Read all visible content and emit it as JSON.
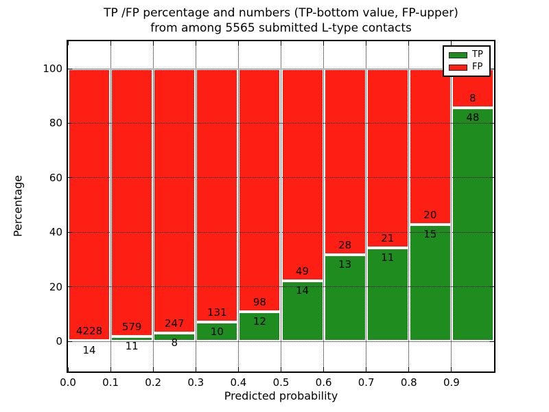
{
  "title": {
    "line1": "TP /FP percentage and numbers (TP-bottom value, FP-upper)",
    "line2": "from among 5565 submitted L-type contacts"
  },
  "axes": {
    "xlabel": "Predicted probability",
    "ylabel": "Percentage",
    "xtick_labels": [
      "0.0",
      "0.1",
      "0.2",
      "0.3",
      "0.4",
      "0.5",
      "0.6",
      "0.7",
      "0.8",
      "0.9"
    ],
    "xtick_values": [
      0.0,
      0.1,
      0.2,
      0.3,
      0.4,
      0.5,
      0.6,
      0.7,
      0.8,
      0.9
    ],
    "ytick_labels": [
      "0",
      "20",
      "40",
      "60",
      "80",
      "100"
    ],
    "ytick_values": [
      0,
      20,
      40,
      60,
      80,
      100
    ],
    "grid": "dotted"
  },
  "legend": {
    "position": "upper-right",
    "items": [
      {
        "label": "TP",
        "color": "#1e8c1e"
      },
      {
        "label": "FP",
        "color": "#fd1e14"
      }
    ]
  },
  "colors": {
    "tp": "#1e8c1e",
    "fp": "#fd1e14",
    "bar_edge": "#ffffff",
    "grid": "#000000",
    "background": "#ffffff"
  },
  "chart_data": {
    "type": "bar",
    "stacked": true,
    "normalized_to_percent": true,
    "title": "TP /FP percentage and numbers (TP-bottom value, FP-upper) from among 5565 submitted L-type contacts",
    "xlabel": "Predicted probability",
    "ylabel": "Percentage",
    "total_contacts": 5565,
    "bin_start": [
      0.0,
      0.1,
      0.2,
      0.3,
      0.4,
      0.5,
      0.6,
      0.7,
      0.8,
      0.9
    ],
    "bin_width": 0.1,
    "xlim": [
      0.0,
      1.0
    ],
    "ylim_percent": [
      -11.3,
      110.3
    ],
    "legend_position": "upper-right",
    "grid": true,
    "series": [
      {
        "name": "TP",
        "color": "#1e8c1e",
        "counts": [
          14,
          11,
          8,
          10,
          12,
          14,
          13,
          11,
          15,
          48
        ]
      },
      {
        "name": "FP",
        "color": "#fd1e14",
        "counts": [
          4228,
          579,
          247,
          131,
          98,
          49,
          28,
          21,
          20,
          8
        ]
      }
    ],
    "tp_percent": [
      0.33,
      1.86,
      3.14,
      7.09,
      10.91,
      22.22,
      31.71,
      34.38,
      42.86,
      85.71
    ]
  }
}
